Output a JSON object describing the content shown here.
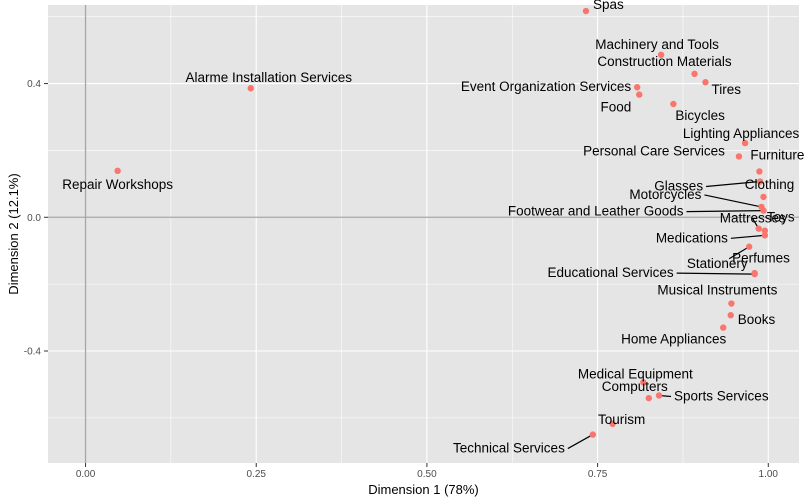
{
  "chart_data": {
    "type": "scatter",
    "xlabel": "Dimension 1 (78%)",
    "ylabel": "Dimension 2 (12.1%)",
    "xlim": [
      -0.055,
      1.045
    ],
    "ylim": [
      -0.735,
      0.635
    ],
    "x_ticks": [
      0.0,
      0.25,
      0.5,
      0.75,
      1.0
    ],
    "x_tick_labels": [
      "0.00",
      "0.25",
      "0.50",
      "0.75",
      "1.00"
    ],
    "y_ticks": [
      -0.4,
      0.0,
      0.4
    ],
    "y_tick_labels": [
      "-0.4",
      "0.0",
      "0.4"
    ],
    "grid": true,
    "reference_lines": {
      "x": 0,
      "y": 0
    },
    "colors": {
      "panel": "#e5e5e5",
      "grid": "#ffffff",
      "point": "#f8766d",
      "refline": "#a6a6a6"
    },
    "points": [
      {
        "label": "Spas",
        "x": 0.733,
        "y": 0.617
      },
      {
        "label": "Machinery and Tools",
        "x": 0.843,
        "y": 0.486
      },
      {
        "label": "Construction Materials",
        "x": 0.892,
        "y": 0.429
      },
      {
        "label": "Tires",
        "x": 0.908,
        "y": 0.404
      },
      {
        "label": "Alarme Installation Services",
        "x": 0.242,
        "y": 0.386
      },
      {
        "label": "Event Organization Services",
        "x": 0.808,
        "y": 0.389
      },
      {
        "label": "Food",
        "x": 0.811,
        "y": 0.367
      },
      {
        "label": "Bicycles",
        "x": 0.861,
        "y": 0.339
      },
      {
        "label": "Lighting Appliances",
        "x": 0.966,
        "y": 0.222
      },
      {
        "label": "Personal Care Services",
        "x": 0.957,
        "y": 0.182
      },
      {
        "label": "Furniture",
        "x": 0.987,
        "y": 0.137
      },
      {
        "label": "Repair Workshops",
        "x": 0.047,
        "y": 0.139
      },
      {
        "label": "Glasses",
        "x": 0.988,
        "y": 0.107
      },
      {
        "label": "Clothing",
        "x": 0.993,
        "y": 0.061
      },
      {
        "label": "Motorcycles",
        "x": 0.99,
        "y": 0.031
      },
      {
        "label": "Footwear and Leather Goods",
        "x": 0.993,
        "y": 0.02
      },
      {
        "label": "Mattresses",
        "x": 0.986,
        "y": -0.034
      },
      {
        "label": "Toys",
        "x": 0.995,
        "y": -0.04
      },
      {
        "label": "Medications",
        "x": 0.995,
        "y": -0.054
      },
      {
        "label": "Perfumes",
        "x": 0.972,
        "y": -0.088
      },
      {
        "label": "Stationery",
        "x": 0.98,
        "y": -0.167
      },
      {
        "label": "Educational Services",
        "x": 0.98,
        "y": -0.17
      },
      {
        "label": "Musical Instruments",
        "x": 0.946,
        "y": -0.258
      },
      {
        "label": "Books",
        "x": 0.945,
        "y": -0.293
      },
      {
        "label": "Home Appliances",
        "x": 0.934,
        "y": -0.33
      },
      {
        "label": "Medical Equipment",
        "x": 0.817,
        "y": -0.494
      },
      {
        "label": "Sports Services",
        "x": 0.84,
        "y": -0.533
      },
      {
        "label": "Computers",
        "x": 0.825,
        "y": -0.541
      },
      {
        "label": "Tourism",
        "x": 0.772,
        "y": -0.618
      },
      {
        "label": "Technical Services",
        "x": 0.743,
        "y": -0.65
      }
    ]
  }
}
